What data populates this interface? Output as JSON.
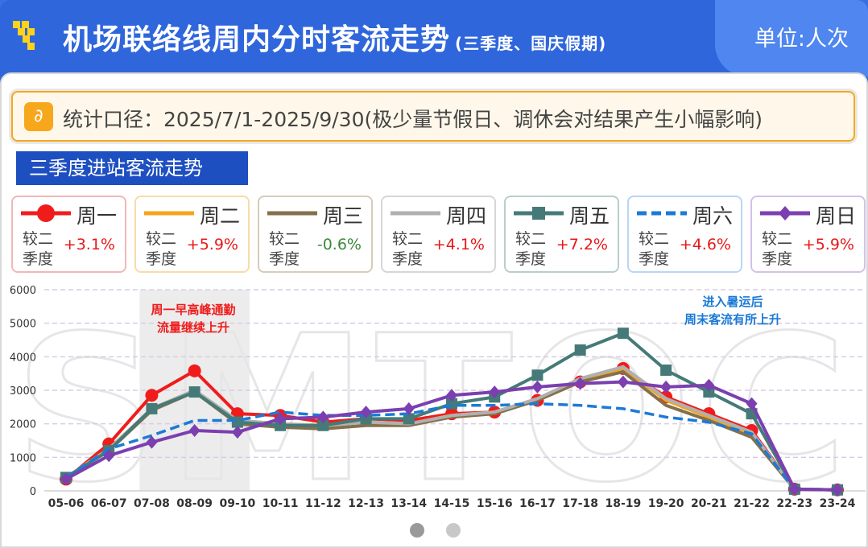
{
  "header": {
    "title": "机场联络线周内分时客流走势",
    "subtitle": "(三季度、国庆假期)",
    "unit": "单位:人次"
  },
  "info": {
    "text": "统计口径：2025/7/1-2025/9/30(极少量节假日、调休会对结果产生小幅影响)",
    "icon": "link-icon"
  },
  "section_title": "三季度进站客流走势",
  "legend": [
    {
      "name": "周一",
      "compare": "较二季度",
      "change": "+3.1%",
      "color": "#f01c1c",
      "border": "#f2b7b7",
      "marker": "circle",
      "dash": false,
      "up": true
    },
    {
      "name": "周二",
      "compare": "较二季度",
      "change": "+5.9%",
      "color": "#f7a418",
      "border": "#f7dca8",
      "marker": "none",
      "dash": false,
      "up": true
    },
    {
      "name": "周三",
      "compare": "较二季度",
      "change": "-0.6%",
      "color": "#85704c",
      "border": "#d6ccb8",
      "marker": "none",
      "dash": false,
      "up": false
    },
    {
      "name": "周四",
      "compare": "较二季度",
      "change": "+4.1%",
      "color": "#b0b0b0",
      "border": "#d6d6d6",
      "marker": "none",
      "dash": false,
      "up": true
    },
    {
      "name": "周五",
      "compare": "较二季度",
      "change": "+7.2%",
      "color": "#457a78",
      "border": "#b8cfcd",
      "marker": "square",
      "dash": false,
      "up": true
    },
    {
      "name": "周六",
      "compare": "较二季度",
      "change": "+4.6%",
      "color": "#1b7ad6",
      "border": "#b9d6f2",
      "marker": "none",
      "dash": true,
      "up": true
    },
    {
      "name": "周日",
      "compare": "较二季度",
      "change": "+5.9%",
      "color": "#7b3fb0",
      "border": "#d4c2e6",
      "marker": "diamond",
      "dash": false,
      "up": true
    }
  ],
  "colors": {
    "up": "#e81818",
    "down": "#3a8a3a"
  },
  "chart_data": {
    "type": "line",
    "categories": [
      "05-06",
      "06-07",
      "07-08",
      "08-09",
      "09-10",
      "10-11",
      "11-12",
      "12-13",
      "13-14",
      "14-15",
      "15-16",
      "16-17",
      "17-18",
      "18-19",
      "19-20",
      "20-21",
      "21-22",
      "22-23",
      "23-24"
    ],
    "ylim": [
      0,
      6000
    ],
    "yticks": [
      "0",
      "1000",
      "2000",
      "3000",
      "4000",
      "5000",
      "6000"
    ],
    "grid": true,
    "highlight_range": [
      "07-08",
      "09-10"
    ],
    "annotations": [
      {
        "text": "周一早高峰通勤",
        "text2": "流量继续上升",
        "color": "#f01c1c"
      },
      {
        "text": "进入暑运后",
        "text2": "周末客流有所上升",
        "color": "#1b7ad6"
      }
    ],
    "series": [
      {
        "name": "周一",
        "values": [
          350,
          1400,
          2850,
          3580,
          2300,
          2250,
          2050,
          2150,
          2100,
          2300,
          2350,
          2700,
          3250,
          3650,
          2800,
          2300,
          1800,
          50,
          30
        ]
      },
      {
        "name": "周二",
        "values": [
          400,
          1250,
          2450,
          3000,
          2100,
          2000,
          1950,
          2050,
          2000,
          2250,
          2350,
          2750,
          3300,
          3650,
          2700,
          2200,
          1700,
          50,
          30
        ]
      },
      {
        "name": "周三",
        "values": [
          400,
          1200,
          2400,
          2950,
          2000,
          1900,
          1850,
          1950,
          1950,
          2200,
          2300,
          2700,
          3250,
          3550,
          2550,
          2100,
          1600,
          50,
          30
        ]
      },
      {
        "name": "周四",
        "values": [
          400,
          1250,
          2450,
          3000,
          2100,
          2000,
          1950,
          2050,
          2000,
          2250,
          2350,
          2750,
          3350,
          3700,
          2750,
          2250,
          1750,
          50,
          30
        ]
      },
      {
        "name": "周五",
        "values": [
          400,
          1200,
          2450,
          2950,
          2050,
          1950,
          1950,
          2150,
          2150,
          2600,
          2800,
          3450,
          4200,
          4700,
          3600,
          2950,
          2300,
          50,
          30
        ]
      },
      {
        "name": "周六",
        "values": [
          400,
          1250,
          1650,
          2100,
          2100,
          2350,
          2250,
          2250,
          2300,
          2550,
          2550,
          2600,
          2550,
          2450,
          2200,
          2050,
          1700,
          50,
          30
        ]
      },
      {
        "name": "周日",
        "values": [
          350,
          1050,
          1450,
          1800,
          1750,
          2150,
          2200,
          2350,
          2450,
          2850,
          2950,
          3100,
          3200,
          3250,
          3100,
          3150,
          2600,
          50,
          30
        ]
      }
    ]
  },
  "watermark": "SMTOC"
}
